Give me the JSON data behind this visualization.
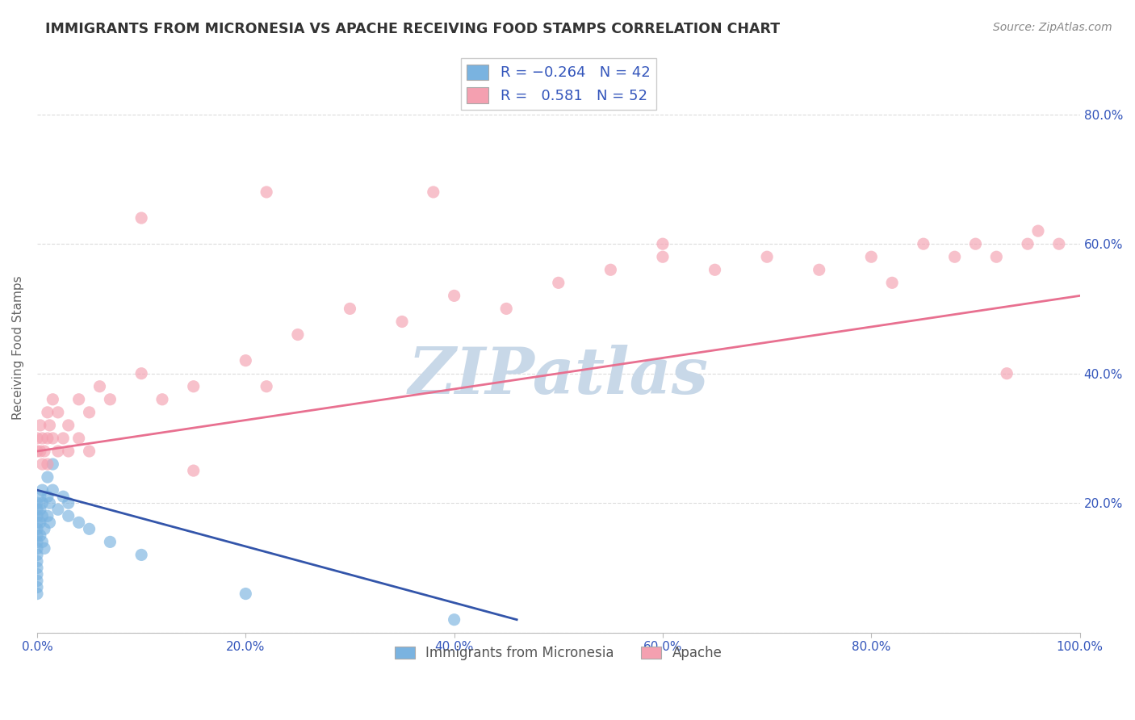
{
  "title": "IMMIGRANTS FROM MICRONESIA VS APACHE RECEIVING FOOD STAMPS CORRELATION CHART",
  "source": "Source: ZipAtlas.com",
  "ylabel": "Receiving Food Stamps",
  "xlim": [
    0.0,
    1.0
  ],
  "ylim": [
    0.0,
    0.88
  ],
  "xticks": [
    0.0,
    0.2,
    0.4,
    0.6,
    0.8,
    1.0
  ],
  "yticks": [
    0.0,
    0.2,
    0.4,
    0.6,
    0.8
  ],
  "xticklabels": [
    "0.0%",
    "20.0%",
    "40.0%",
    "60.0%",
    "80.0%",
    "100.0%"
  ],
  "yticklabels_right": [
    "",
    "20.0%",
    "40.0%",
    "60.0%",
    "80.0%"
  ],
  "watermark": "ZIPatlas",
  "watermark_color": "#c8d8e8",
  "grid_color": "#cccccc",
  "background_color": "#ffffff",
  "blue_color": "#7ab3e0",
  "pink_color": "#f4a0b0",
  "blue_line_color": "#3355aa",
  "pink_line_color": "#e87090",
  "title_color": "#333333",
  "tick_color": "#3355bb",
  "source_color": "#888888",
  "micronesia_points": [
    [
      0.0,
      0.2
    ],
    [
      0.0,
      0.19
    ],
    [
      0.0,
      0.18
    ],
    [
      0.0,
      0.17
    ],
    [
      0.0,
      0.16
    ],
    [
      0.0,
      0.15
    ],
    [
      0.0,
      0.14
    ],
    [
      0.0,
      0.13
    ],
    [
      0.0,
      0.12
    ],
    [
      0.0,
      0.11
    ],
    [
      0.0,
      0.1
    ],
    [
      0.0,
      0.09
    ],
    [
      0.0,
      0.08
    ],
    [
      0.0,
      0.07
    ],
    [
      0.0,
      0.06
    ],
    [
      0.003,
      0.21
    ],
    [
      0.003,
      0.19
    ],
    [
      0.003,
      0.17
    ],
    [
      0.003,
      0.15
    ],
    [
      0.005,
      0.22
    ],
    [
      0.005,
      0.2
    ],
    [
      0.005,
      0.18
    ],
    [
      0.005,
      0.14
    ],
    [
      0.007,
      0.16
    ],
    [
      0.007,
      0.13
    ],
    [
      0.01,
      0.24
    ],
    [
      0.01,
      0.21
    ],
    [
      0.01,
      0.18
    ],
    [
      0.012,
      0.2
    ],
    [
      0.012,
      0.17
    ],
    [
      0.015,
      0.26
    ],
    [
      0.015,
      0.22
    ],
    [
      0.02,
      0.19
    ],
    [
      0.025,
      0.21
    ],
    [
      0.03,
      0.2
    ],
    [
      0.03,
      0.18
    ],
    [
      0.04,
      0.17
    ],
    [
      0.05,
      0.16
    ],
    [
      0.07,
      0.14
    ],
    [
      0.1,
      0.12
    ],
    [
      0.2,
      0.06
    ],
    [
      0.4,
      0.02
    ]
  ],
  "apache_points": [
    [
      0.0,
      0.3
    ],
    [
      0.0,
      0.28
    ],
    [
      0.003,
      0.32
    ],
    [
      0.003,
      0.28
    ],
    [
      0.005,
      0.3
    ],
    [
      0.005,
      0.26
    ],
    [
      0.007,
      0.28
    ],
    [
      0.01,
      0.34
    ],
    [
      0.01,
      0.3
    ],
    [
      0.01,
      0.26
    ],
    [
      0.012,
      0.32
    ],
    [
      0.015,
      0.36
    ],
    [
      0.015,
      0.3
    ],
    [
      0.02,
      0.34
    ],
    [
      0.02,
      0.28
    ],
    [
      0.025,
      0.3
    ],
    [
      0.03,
      0.32
    ],
    [
      0.03,
      0.28
    ],
    [
      0.04,
      0.36
    ],
    [
      0.04,
      0.3
    ],
    [
      0.05,
      0.34
    ],
    [
      0.05,
      0.28
    ],
    [
      0.06,
      0.38
    ],
    [
      0.07,
      0.36
    ],
    [
      0.1,
      0.4
    ],
    [
      0.12,
      0.36
    ],
    [
      0.15,
      0.38
    ],
    [
      0.15,
      0.25
    ],
    [
      0.2,
      0.42
    ],
    [
      0.22,
      0.38
    ],
    [
      0.25,
      0.46
    ],
    [
      0.3,
      0.5
    ],
    [
      0.35,
      0.48
    ],
    [
      0.4,
      0.52
    ],
    [
      0.45,
      0.5
    ],
    [
      0.5,
      0.54
    ],
    [
      0.55,
      0.56
    ],
    [
      0.6,
      0.58
    ],
    [
      0.6,
      0.6
    ],
    [
      0.65,
      0.56
    ],
    [
      0.7,
      0.58
    ],
    [
      0.75,
      0.56
    ],
    [
      0.8,
      0.58
    ],
    [
      0.82,
      0.54
    ],
    [
      0.85,
      0.6
    ],
    [
      0.88,
      0.58
    ],
    [
      0.9,
      0.6
    ],
    [
      0.92,
      0.58
    ],
    [
      0.93,
      0.4
    ],
    [
      0.95,
      0.6
    ],
    [
      0.96,
      0.62
    ],
    [
      0.98,
      0.6
    ],
    [
      0.22,
      0.68
    ],
    [
      0.38,
      0.68
    ],
    [
      0.1,
      0.64
    ]
  ],
  "micro_trend_x": [
    0.0,
    0.46
  ],
  "micro_trend_y": [
    0.22,
    0.02
  ],
  "apache_trend_x": [
    0.0,
    1.0
  ],
  "apache_trend_y": [
    0.28,
    0.52
  ]
}
